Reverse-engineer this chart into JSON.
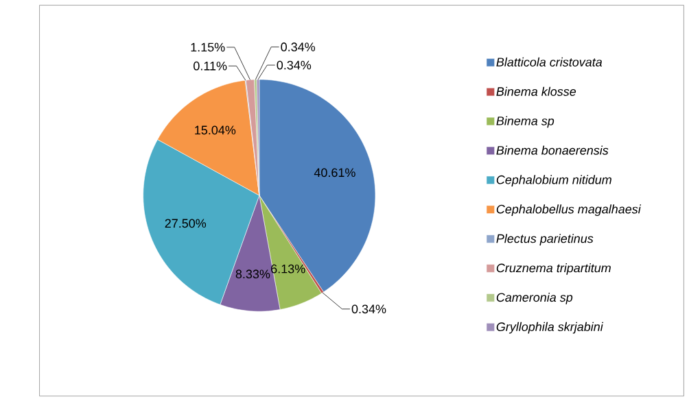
{
  "chart_data": {
    "type": "pie",
    "categories": [
      "Blatticola cristovata",
      "Binema klosse",
      "Binema sp",
      "Binema bonaerensis",
      "Cephalobium nitidum",
      "Cephalobellus magalhaesi",
      "Plectus parietinus",
      "Cruznema tripartitum",
      "Cameronia sp",
      "Gryllophila skrjabini"
    ],
    "values": [
      40.61,
      0.34,
      6.13,
      8.33,
      27.5,
      15.04,
      0.11,
      1.15,
      0.34,
      0.34
    ],
    "value_labels": [
      "40.61%",
      "0.34%",
      "6.13%",
      "8.33%",
      "27.50%",
      "15.04%",
      "0.11%",
      "1.15%",
      "0.34%",
      "0.34%"
    ],
    "colors": [
      "#4f81bd",
      "#c0504d",
      "#9bbb59",
      "#8064a2",
      "#4bacc6",
      "#f79646",
      "#8ea5cb",
      "#d59b9a",
      "#b3c98c",
      "#9f8fba"
    ],
    "legend": "right"
  }
}
